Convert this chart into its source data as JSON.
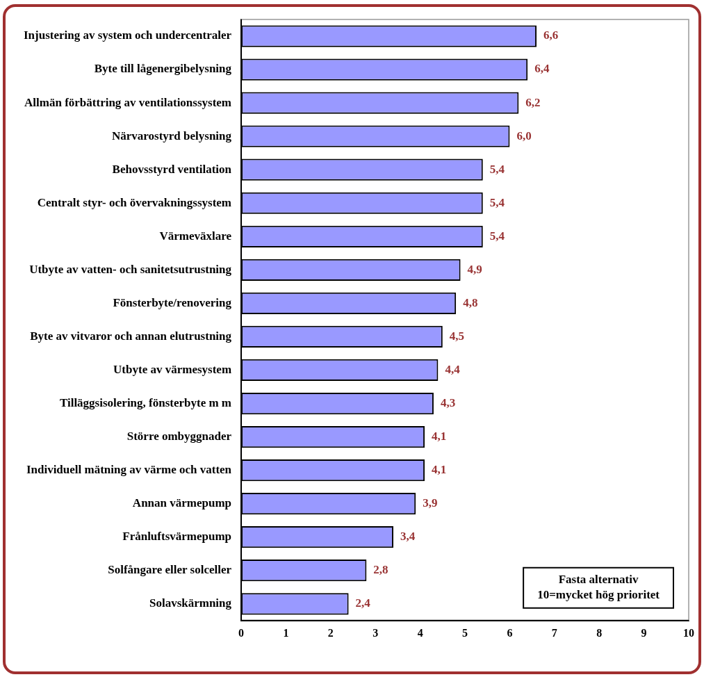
{
  "chart_data": {
    "type": "bar",
    "orientation": "horizontal",
    "categories": [
      "Injustering av system och undercentraler",
      "Byte till lågenergibelysning",
      "Allmän förbättring av ventilationssystem",
      "Närvarostyrd belysning",
      "Behovsstyrd ventilation",
      "Centralt styr- och övervakningssystem",
      "Värmeväxlare",
      "Utbyte av vatten- och sanitetsutrustning",
      "Fönsterbyte/renovering",
      "Byte av vitvaror och annan elutrustning",
      "Utbyte av värmesystem",
      "Tilläggsisolering, fönsterbyte m m",
      "Större ombyggnader",
      "Individuell mätning av värme och vatten",
      "Annan värmepump",
      "Frånluftsvärmepump",
      "Solfångare eller solceller",
      "Solavskärmning"
    ],
    "values": [
      6.6,
      6.4,
      6.2,
      6.0,
      5.4,
      5.4,
      5.4,
      4.9,
      4.8,
      4.5,
      4.4,
      4.3,
      4.1,
      4.1,
      3.9,
      3.4,
      2.8,
      2.4
    ],
    "value_labels": [
      "6,6",
      "6,4",
      "6,2",
      "6,0",
      "5,4",
      "5,4",
      "5,4",
      "4,9",
      "4,8",
      "4,5",
      "4,4",
      "4,3",
      "4,1",
      "4,1",
      "3,9",
      "3,4",
      "2,8",
      "2,4"
    ],
    "color": "#9999ff",
    "xlim": [
      0,
      10
    ],
    "xticks": [
      0,
      1,
      2,
      3,
      4,
      5,
      6,
      7,
      8,
      9,
      10
    ],
    "grid": false,
    "legend": false,
    "annotations": [
      "Fasta alternativ\n10=mycket hög prioritet"
    ]
  }
}
